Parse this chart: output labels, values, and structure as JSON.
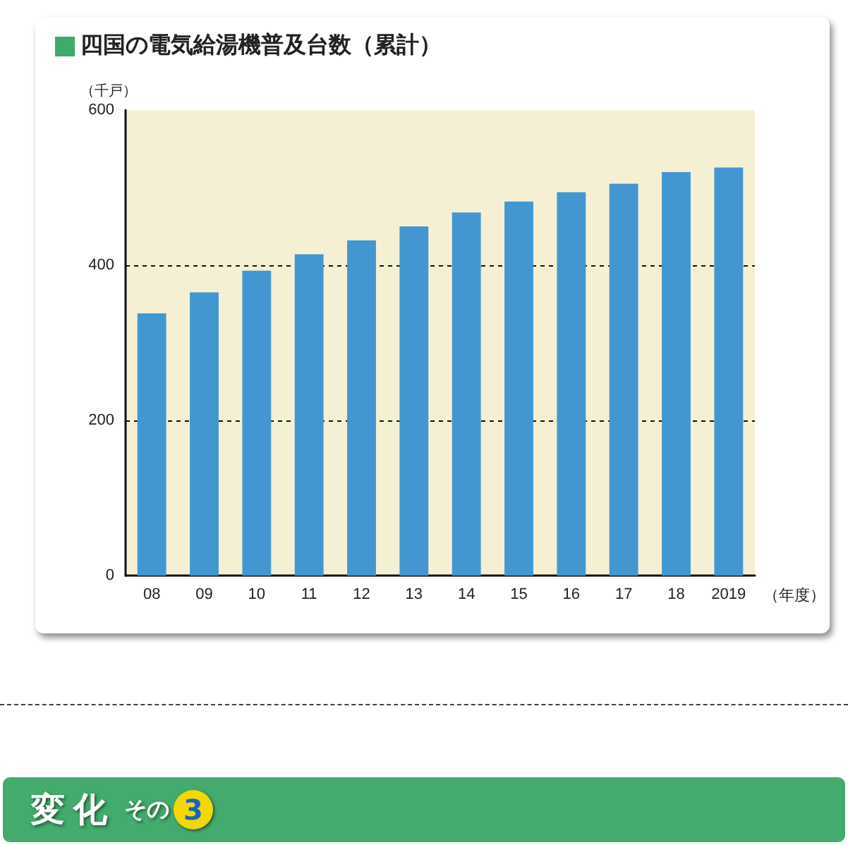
{
  "chart_data": {
    "type": "bar",
    "title": "四国の電気給湯機普及台数（累計）",
    "ylabel": "（千戸）",
    "xlabel": "（年度）",
    "categories": [
      "08",
      "09",
      "10",
      "11",
      "12",
      "13",
      "14",
      "15",
      "16",
      "17",
      "18",
      "2019"
    ],
    "values": [
      338,
      365,
      393,
      414,
      432,
      450,
      468,
      482,
      494,
      505,
      520,
      526
    ],
    "color": "#4496d0",
    "ylim": [
      0,
      600
    ],
    "yticks": [
      0,
      200,
      400,
      600
    ],
    "grid": "y",
    "annotations": [
      "変化",
      "その",
      "3"
    ]
  }
}
